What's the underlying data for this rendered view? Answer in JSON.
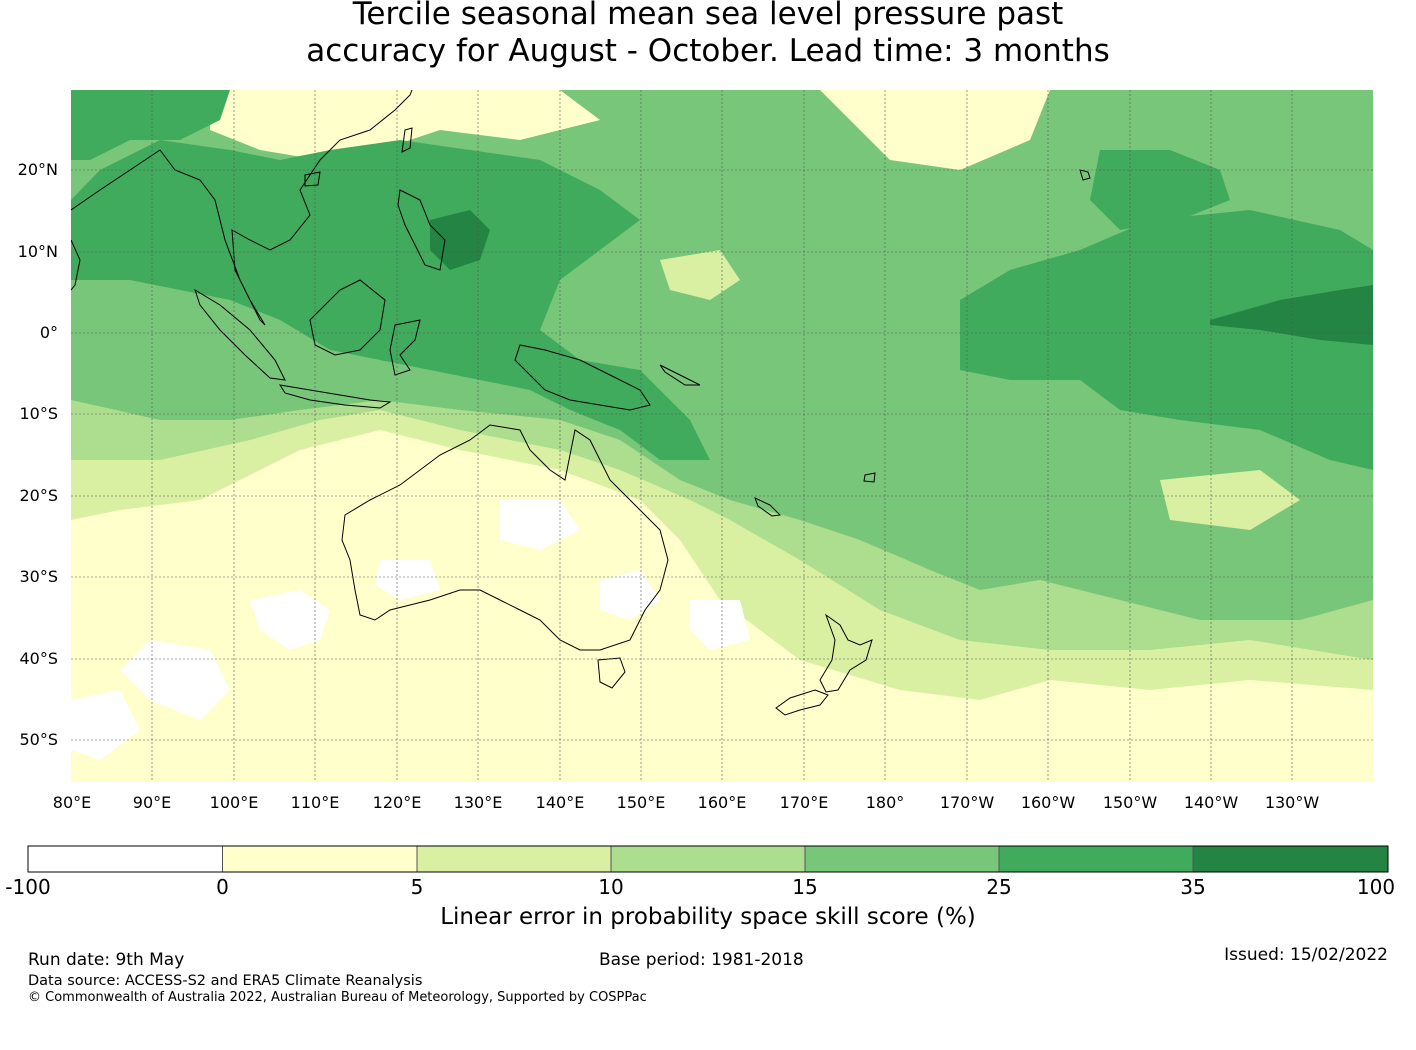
{
  "title": {
    "line1": "Tercile seasonal mean sea level pressure past",
    "line2": "accuracy for August - October. Lead time: 3 months"
  },
  "map": {
    "lat_labels": [
      "20°N",
      "10°N",
      "0°",
      "10°S",
      "20°S",
      "30°S",
      "40°S",
      "50°S"
    ],
    "lon_labels": [
      "80°E",
      "90°E",
      "100°E",
      "110°E",
      "120°E",
      "130°E",
      "140°E",
      "150°E",
      "160°E",
      "170°E",
      "180°",
      "170°W",
      "160°W",
      "150°W",
      "140°W",
      "130°W"
    ],
    "colors": {
      "c_neg": "#ffffff",
      "c0": "#ffffcc",
      "c5": "#d9f0a3",
      "c10": "#addd8e",
      "c15": "#78c679",
      "c25": "#41ab5d",
      "c35": "#238443",
      "coast": "#000000",
      "grid": "#555555"
    }
  },
  "colorbar": {
    "ticks": [
      "-100",
      "0",
      "5",
      "10",
      "15",
      "25",
      "35",
      "100"
    ],
    "label": "Linear error in probability space skill score (%)"
  },
  "footer": {
    "run_date": "Run date: 9th May",
    "base_period": "Base period: 1981-2018",
    "issued": "Issued: 15/02/2022",
    "data_source": "Data source: ACCESS-S2 and ERA5 Climate Reanalysis",
    "copyright": "© Commonwealth of Australia 2022, Australian Bureau of Meteorology, Supported by COSPPac"
  }
}
